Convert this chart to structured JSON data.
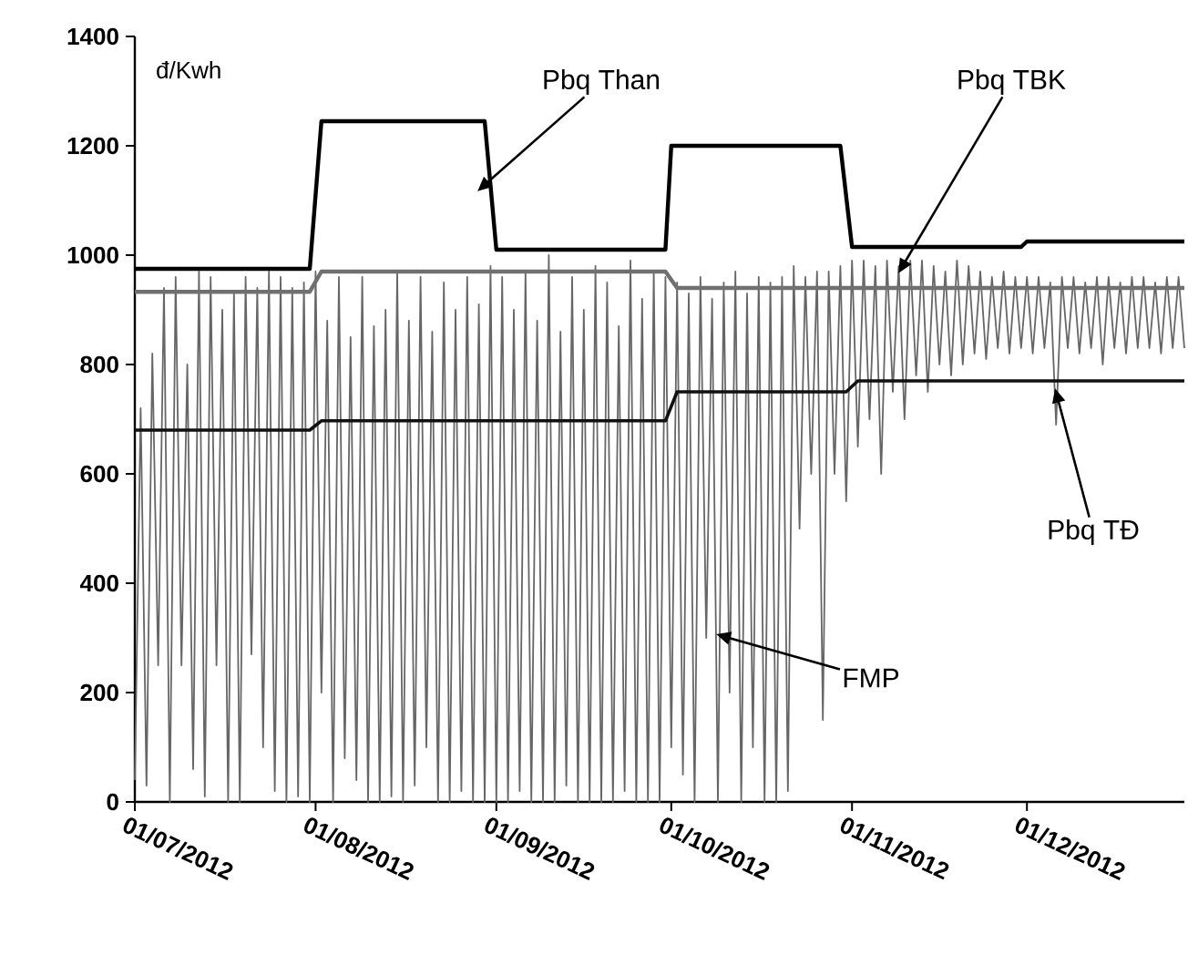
{
  "chart_data": {
    "type": "line",
    "ylabel": "đ/Kwh",
    "xlim": [
      "2012-07-01",
      "2012-12-28"
    ],
    "ylim": [
      0,
      1400
    ],
    "yticks": [
      0,
      200,
      400,
      600,
      800,
      1000,
      1200,
      1400
    ],
    "xticks": [
      {
        "value": "2012-07-01",
        "label": "01/07/2012"
      },
      {
        "value": "2012-08-01",
        "label": "01/08/2012"
      },
      {
        "value": "2012-09-01",
        "label": "01/09/2012"
      },
      {
        "value": "2012-10-01",
        "label": "01/10/2012"
      },
      {
        "value": "2012-11-01",
        "label": "01/11/2012"
      },
      {
        "value": "2012-12-01",
        "label": "01/12/2012"
      }
    ],
    "grid": false,
    "legend": false,
    "marker": "none",
    "line_style": "solid",
    "series": [
      {
        "name": "FMP",
        "color": "#666666",
        "x": [
          "2012-07-01",
          "2012-07-02",
          "2012-07-03",
          "2012-07-04",
          "2012-07-05",
          "2012-07-06",
          "2012-07-07",
          "2012-07-08",
          "2012-07-09",
          "2012-07-10",
          "2012-07-11",
          "2012-07-12",
          "2012-07-13",
          "2012-07-14",
          "2012-07-15",
          "2012-07-16",
          "2012-07-17",
          "2012-07-18",
          "2012-07-19",
          "2012-07-20",
          "2012-07-21",
          "2012-07-22",
          "2012-07-23",
          "2012-07-24",
          "2012-07-25",
          "2012-07-26",
          "2012-07-27",
          "2012-07-28",
          "2012-07-29",
          "2012-07-30",
          "2012-07-31",
          "2012-08-01",
          "2012-08-02",
          "2012-08-03",
          "2012-08-04",
          "2012-08-05",
          "2012-08-06",
          "2012-08-07",
          "2012-08-08",
          "2012-08-09",
          "2012-08-10",
          "2012-08-11",
          "2012-08-12",
          "2012-08-13",
          "2012-08-14",
          "2012-08-15",
          "2012-08-16",
          "2012-08-17",
          "2012-08-18",
          "2012-08-19",
          "2012-08-20",
          "2012-08-21",
          "2012-08-22",
          "2012-08-23",
          "2012-08-24",
          "2012-08-25",
          "2012-08-26",
          "2012-08-27",
          "2012-08-28",
          "2012-08-29",
          "2012-08-30",
          "2012-08-31",
          "2012-09-01",
          "2012-09-02",
          "2012-09-03",
          "2012-09-04",
          "2012-09-05",
          "2012-09-06",
          "2012-09-07",
          "2012-09-08",
          "2012-09-09",
          "2012-09-10",
          "2012-09-11",
          "2012-09-12",
          "2012-09-13",
          "2012-09-14",
          "2012-09-15",
          "2012-09-16",
          "2012-09-17",
          "2012-09-18",
          "2012-09-19",
          "2012-09-20",
          "2012-09-21",
          "2012-09-22",
          "2012-09-23",
          "2012-09-24",
          "2012-09-25",
          "2012-09-26",
          "2012-09-27",
          "2012-09-28",
          "2012-09-29",
          "2012-09-30",
          "2012-10-01",
          "2012-10-02",
          "2012-10-03",
          "2012-10-04",
          "2012-10-05",
          "2012-10-06",
          "2012-10-07",
          "2012-10-08",
          "2012-10-09",
          "2012-10-10",
          "2012-10-11",
          "2012-10-12",
          "2012-10-13",
          "2012-10-14",
          "2012-10-15",
          "2012-10-16",
          "2012-10-17",
          "2012-10-18",
          "2012-10-19",
          "2012-10-20",
          "2012-10-21",
          "2012-10-22",
          "2012-10-23",
          "2012-10-24",
          "2012-10-25",
          "2012-10-26",
          "2012-10-27",
          "2012-10-28",
          "2012-10-29",
          "2012-10-30",
          "2012-10-31",
          "2012-11-01",
          "2012-11-02",
          "2012-11-03",
          "2012-11-04",
          "2012-11-05",
          "2012-11-06",
          "2012-11-07",
          "2012-11-08",
          "2012-11-09",
          "2012-11-10",
          "2012-11-11",
          "2012-11-12",
          "2012-11-13",
          "2012-11-14",
          "2012-11-15",
          "2012-11-16",
          "2012-11-17",
          "2012-11-18",
          "2012-11-19",
          "2012-11-20",
          "2012-11-21",
          "2012-11-22",
          "2012-11-23",
          "2012-11-24",
          "2012-11-25",
          "2012-11-26",
          "2012-11-27",
          "2012-11-28",
          "2012-11-29",
          "2012-11-30",
          "2012-12-01",
          "2012-12-02",
          "2012-12-03",
          "2012-12-04",
          "2012-12-05",
          "2012-12-06",
          "2012-12-07",
          "2012-12-08",
          "2012-12-09",
          "2012-12-10",
          "2012-12-11",
          "2012-12-12",
          "2012-12-13",
          "2012-12-14",
          "2012-12-15",
          "2012-12-16",
          "2012-12-17",
          "2012-12-18",
          "2012-12-19",
          "2012-12-20",
          "2012-12-21",
          "2012-12-22",
          "2012-12-23",
          "2012-12-24",
          "2012-12-25",
          "2012-12-26",
          "2012-12-27",
          "2012-12-28"
        ],
        "values": [
          40,
          720,
          30,
          820,
          250,
          940,
          0,
          960,
          250,
          800,
          60,
          970,
          10,
          960,
          250,
          900,
          0,
          930,
          0,
          960,
          270,
          940,
          100,
          970,
          20,
          960,
          0,
          940,
          10,
          950,
          0,
          970,
          200,
          880,
          0,
          960,
          80,
          850,
          40,
          960,
          0,
          870,
          0,
          900,
          10,
          970,
          0,
          880,
          30,
          960,
          100,
          860,
          0,
          950,
          0,
          900,
          20,
          960,
          0,
          910,
          0,
          980,
          0,
          960,
          0,
          900,
          20,
          970,
          0,
          880,
          0,
          1000,
          0,
          860,
          30,
          960,
          0,
          900,
          0,
          980,
          0,
          950,
          0,
          870,
          20,
          990,
          0,
          920,
          0,
          970,
          0,
          960,
          100,
          950,
          50,
          930,
          0,
          960,
          300,
          920,
          0,
          950,
          200,
          970,
          0,
          930,
          100,
          960,
          0,
          950,
          0,
          960,
          20,
          980,
          500,
          960,
          600,
          970,
          150,
          970,
          600,
          980,
          550,
          990,
          650,
          990,
          700,
          980,
          600,
          990,
          750,
          980,
          700,
          990,
          780,
          990,
          750,
          980,
          800,
          970,
          780,
          990,
          800,
          980,
          820,
          970,
          810,
          960,
          830,
          970,
          820,
          960,
          830,
          960,
          820,
          960,
          830,
          950,
          690,
          960,
          830,
          960,
          820,
          950,
          830,
          960,
          800,
          960,
          830,
          950,
          820,
          960,
          830,
          960,
          830,
          950,
          820,
          960,
          830,
          960,
          830
        ]
      },
      {
        "name": "Pbq Than",
        "color": "#000000",
        "x": [
          "2012-07-01",
          "2012-07-31",
          "2012-08-02",
          "2012-08-30",
          "2012-09-01",
          "2012-09-30",
          "2012-10-01",
          "2012-10-30",
          "2012-11-01",
          "2012-11-30",
          "2012-12-01",
          "2012-12-28"
        ],
        "values": [
          975,
          975,
          1245,
          1245,
          1010,
          1010,
          1200,
          1200,
          1015,
          1015,
          1025,
          1025
        ]
      },
      {
        "name": "Pbq TBK",
        "color": "#707070",
        "x": [
          "2012-07-01",
          "2012-07-31",
          "2012-08-02",
          "2012-09-30",
          "2012-10-02",
          "2012-12-28"
        ],
        "values": [
          933,
          933,
          970,
          970,
          940,
          940
        ]
      },
      {
        "name": "Pbq TĐ",
        "color": "#111111",
        "x": [
          "2012-07-01",
          "2012-07-31",
          "2012-08-02",
          "2012-09-30",
          "2012-10-02",
          "2012-10-31",
          "2012-11-02",
          "2012-12-28"
        ],
        "values": [
          680,
          680,
          697,
          697,
          750,
          750,
          770,
          770
        ]
      }
    ]
  }
}
